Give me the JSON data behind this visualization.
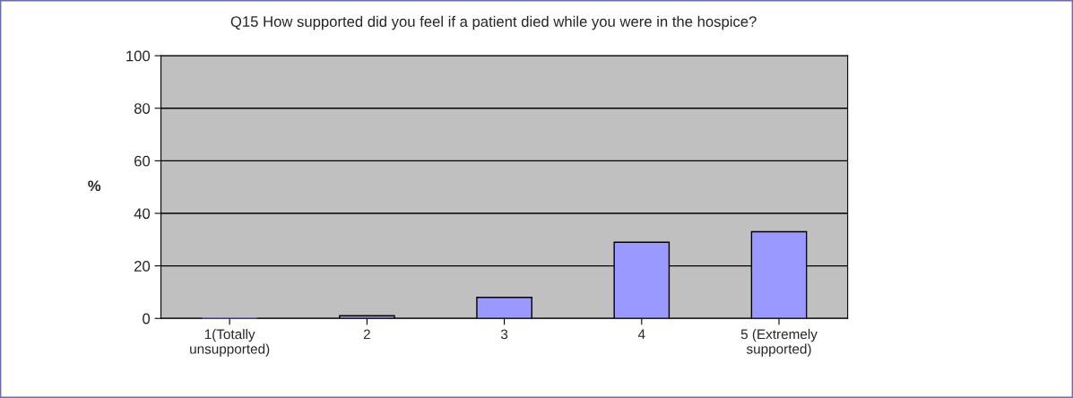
{
  "chart_data": {
    "type": "bar",
    "title": "Q15 How supported did you feel if a patient died while you were in the hospice?",
    "ylabel": "%",
    "categories": [
      "1(Totally\nunsupported)",
      "2",
      "3",
      "4",
      "5 (Extremely\nsupported)"
    ],
    "values": [
      0,
      1,
      8,
      29,
      33
    ],
    "color": "#9999ff",
    "ylim": [
      0,
      100
    ],
    "yticks": [
      0,
      20,
      40,
      60,
      80,
      100
    ],
    "grid": "y"
  }
}
